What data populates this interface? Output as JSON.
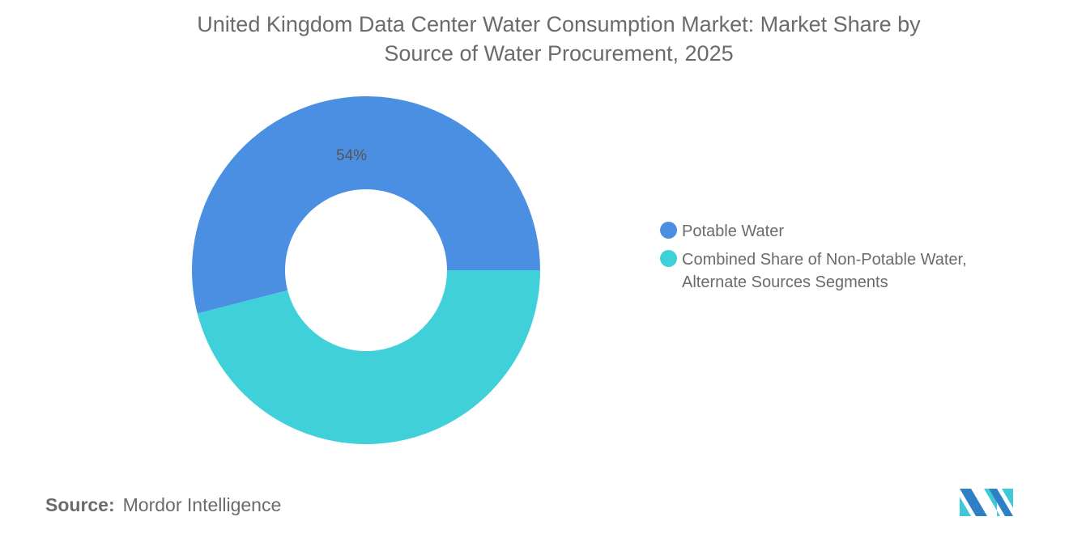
{
  "chart_data": {
    "type": "pie",
    "variant": "donut",
    "title": "United Kingdom Data Center Water Consumption Market: Market Share by Source of Water Procurement, 2025",
    "title_lines": [
      "United Kingdom Data Center Water Consumption Market: Market Share by",
      "Source of Water Procurement, 2025"
    ],
    "categories": [
      "Potable Water",
      "Combined Share of Non-Potable Water, Alternate Sources Segments"
    ],
    "values": [
      54,
      46
    ],
    "data_labels": [
      "54%",
      ""
    ],
    "colors": [
      "#4a8fe2",
      "#3fd0d9"
    ],
    "legend_position": "right"
  },
  "legend": {
    "items": [
      {
        "label": "Potable Water",
        "color": "#4a8fe2"
      },
      {
        "label": "Combined Share of Non-Potable Water, Alternate Sources Segments",
        "color": "#3fd0d9"
      }
    ]
  },
  "source": {
    "label": "Source:",
    "value": "Mordor Intelligence"
  },
  "logo": {
    "alt": "Mordor Intelligence"
  }
}
